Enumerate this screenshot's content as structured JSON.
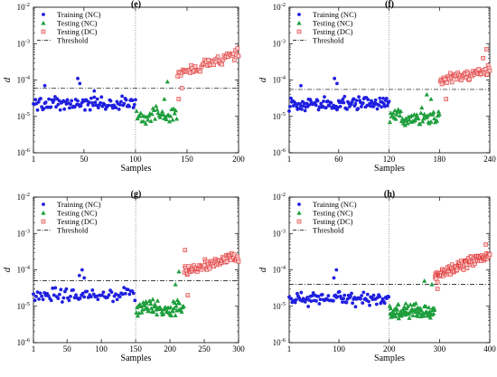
{
  "figure": {
    "description_free": true
  },
  "chart_data": [
    {
      "type": "scatter",
      "title": "(e)",
      "xlabel": "Samples",
      "ylabel": "d",
      "xlim": [
        1,
        200
      ],
      "xticks": [
        1,
        50,
        100,
        150,
        200
      ],
      "xtick_labels": [
        "1",
        "50",
        "100",
        "150",
        "200"
      ],
      "yscale": "log",
      "ylim": [
        1e-06,
        0.01
      ],
      "yticks": [
        1e-06,
        1e-05,
        0.0001,
        0.001,
        0.01
      ],
      "ytick_labels": [
        [
          "10",
          "-6"
        ],
        [
          "10",
          "-5"
        ],
        [
          "10",
          "-4"
        ],
        [
          "10",
          "-3"
        ],
        [
          "10",
          "-2"
        ]
      ],
      "threshold": 6e-05,
      "divider_x": 100,
      "legend": [
        "Training (NC)",
        "Testing (NC)",
        "Testing (DC)",
        "Threshold"
      ],
      "legend_position": "top-left",
      "series": [
        {
          "name": "Training (NC)",
          "marker": "circle",
          "color": "#1f1fe0",
          "x_start": 1,
          "x_end": 100,
          "log_center": -4.65,
          "log_amp": 0.22,
          "spikes": [
            [
              44,
              0.00011
            ],
            [
              46,
              8e-05
            ],
            [
              12,
              7e-05
            ],
            [
              60,
              5e-05
            ]
          ]
        },
        {
          "name": "Testing (NC)",
          "marker": "triangle",
          "color": "#1e9e3c",
          "x_start": 101,
          "x_end": 140,
          "log_center": -4.95,
          "log_amp": 0.28,
          "spikes": [
            [
              131,
              9e-05
            ],
            [
              128,
              3e-05
            ]
          ]
        },
        {
          "name": "Testing (DC)",
          "marker": "square",
          "color": "#e23b3b",
          "x_start": 141,
          "x_end": 200,
          "log_center_start": -3.85,
          "log_center_end": -3.25,
          "log_amp": 0.18,
          "spikes": [
            [
              142,
              3e-05
            ],
            [
              145,
              6e-05
            ]
          ]
        }
      ]
    },
    {
      "type": "scatter",
      "title": "(f)",
      "xlabel": "Samples",
      "ylabel": "d",
      "xlim": [
        1,
        240
      ],
      "xticks": [
        1,
        60,
        120,
        180,
        240
      ],
      "xtick_labels": [
        "1",
        "60",
        "120",
        "180",
        "240"
      ],
      "yscale": "log",
      "ylim": [
        1e-06,
        0.01
      ],
      "yticks": [
        1e-06,
        1e-05,
        0.0001,
        0.001,
        0.01
      ],
      "ytick_labels": [
        [
          "10",
          "-6"
        ],
        [
          "10",
          "-5"
        ],
        [
          "10",
          "-4"
        ],
        [
          "10",
          "-3"
        ],
        [
          "10",
          "-2"
        ]
      ],
      "threshold": 5.5e-05,
      "divider_x": 120,
      "legend": [
        "Training (NC)",
        "Testing (NC)",
        "Testing (DC)",
        "Threshold"
      ],
      "legend_position": "top-left",
      "series": [
        {
          "name": "Training (NC)",
          "marker": "circle",
          "color": "#1f1fe0",
          "x_start": 1,
          "x_end": 120,
          "log_center": -4.65,
          "log_amp": 0.22,
          "spikes": [
            [
              55,
              0.00011
            ],
            [
              58,
              8e-05
            ],
            [
              15,
              7e-05
            ]
          ]
        },
        {
          "name": "Testing (NC)",
          "marker": "triangle",
          "color": "#1e9e3c",
          "x_start": 121,
          "x_end": 180,
          "log_center": -5.0,
          "log_amp": 0.28,
          "spikes": [
            [
              165,
              4e-05
            ],
            [
              170,
              3e-05
            ]
          ]
        },
        {
          "name": "Testing (DC)",
          "marker": "square",
          "color": "#e23b3b",
          "x_start": 181,
          "x_end": 240,
          "log_center_start": -4.0,
          "log_center_end": -3.75,
          "log_amp": 0.18,
          "spikes": [
            [
              236,
              0.0007
            ],
            [
              232,
              0.0004
            ],
            [
              188,
              3e-05
            ]
          ]
        }
      ]
    },
    {
      "type": "scatter",
      "title": "(g)",
      "xlabel": "Samples",
      "ylabel": "d",
      "xlim": [
        1,
        300
      ],
      "xticks": [
        1,
        50,
        100,
        150,
        200,
        250,
        300
      ],
      "xtick_labels": [
        "1",
        "50",
        "100",
        "150",
        "200",
        "250",
        "300"
      ],
      "yscale": "log",
      "ylim": [
        1e-06,
        0.01
      ],
      "yticks": [
        1e-06,
        1e-05,
        0.0001,
        0.001,
        0.01
      ],
      "ytick_labels": [
        [
          "10",
          "-6"
        ],
        [
          "10",
          "-5"
        ],
        [
          "10",
          "-4"
        ],
        [
          "10",
          "-3"
        ],
        [
          "10",
          "-2"
        ]
      ],
      "threshold": 5e-05,
      "divider_x": 150,
      "legend": [
        "Training (NC)",
        "Testing (NC)",
        "Testing (DC)",
        "Threshold"
      ],
      "legend_position": "top-left",
      "series": [
        {
          "name": "Training (NC)",
          "marker": "circle",
          "color": "#1f1fe0",
          "x_start": 1,
          "x_end": 150,
          "log_center": -4.7,
          "log_amp": 0.22,
          "spikes": [
            [
              72,
              0.0001
            ],
            [
              68,
              7e-05
            ],
            [
              75,
              6e-05
            ]
          ]
        },
        {
          "name": "Testing (NC)",
          "marker": "triangle",
          "color": "#1e9e3c",
          "x_start": 151,
          "x_end": 220,
          "log_center": -5.05,
          "log_amp": 0.26,
          "spikes": [
            [
              213,
              9e-05
            ],
            [
              208,
              4e-05
            ]
          ]
        },
        {
          "name": "Testing (DC)",
          "marker": "square",
          "color": "#e23b3b",
          "x_start": 221,
          "x_end": 300,
          "log_center_start": -4.05,
          "log_center_end": -3.6,
          "log_amp": 0.18,
          "spikes": [
            [
              222,
              0.00035
            ],
            [
              226,
              2e-05
            ]
          ]
        }
      ]
    },
    {
      "type": "scatter",
      "title": "(h)",
      "xlabel": "Samples",
      "ylabel": "d",
      "xlim": [
        1,
        400
      ],
      "xticks": [
        1,
        100,
        200,
        300,
        400
      ],
      "xtick_labels": [
        "1",
        "100",
        "200",
        "300",
        "400"
      ],
      "yscale": "log",
      "ylim": [
        1e-06,
        0.01
      ],
      "yticks": [
        1e-06,
        1e-05,
        0.0001,
        0.001,
        0.01
      ],
      "ytick_labels": [
        [
          "10",
          "-6"
        ],
        [
          "10",
          "-5"
        ],
        [
          "10",
          "-4"
        ],
        [
          "10",
          "-3"
        ],
        [
          "10",
          "-2"
        ]
      ],
      "threshold": 4e-05,
      "divider_x": 200,
      "legend": [
        "Training (NC)",
        "Testing (NC)",
        "Testing (DC)",
        "Threshold"
      ],
      "legend_position": "top-left",
      "series": [
        {
          "name": "Training (NC)",
          "marker": "circle",
          "color": "#1f1fe0",
          "x_start": 1,
          "x_end": 200,
          "log_center": -4.8,
          "log_amp": 0.22,
          "spikes": [
            [
              95,
              0.0001
            ],
            [
              90,
              6e-05
            ]
          ]
        },
        {
          "name": "Testing (NC)",
          "marker": "triangle",
          "color": "#1e9e3c",
          "x_start": 201,
          "x_end": 290,
          "log_center": -5.15,
          "log_amp": 0.26,
          "spikes": [
            [
              270,
              5e-05
            ],
            [
              285,
              4e-05
            ]
          ]
        },
        {
          "name": "Testing (DC)",
          "marker": "square",
          "color": "#e23b3b",
          "x_start": 291,
          "x_end": 400,
          "log_center_start": -4.2,
          "log_center_end": -3.55,
          "log_amp": 0.18,
          "spikes": [
            [
              392,
              0.0005
            ],
            [
              296,
              3e-05
            ]
          ]
        }
      ]
    }
  ]
}
